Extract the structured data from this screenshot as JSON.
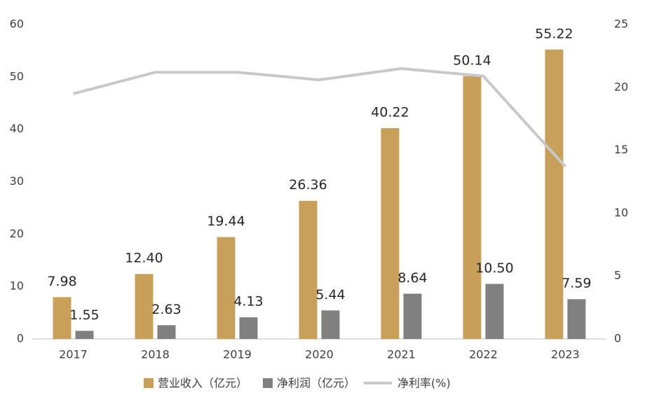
{
  "chart_data": {
    "type": "combo",
    "categories": [
      "2017",
      "2018",
      "2019",
      "2020",
      "2021",
      "2022",
      "2023"
    ],
    "series": [
      {
        "name": "营业收入（亿元）",
        "type": "bar",
        "color": "#C9A05A",
        "values": [
          7.98,
          12.4,
          19.44,
          26.36,
          40.22,
          50.14,
          55.22
        ],
        "value_labels": [
          "7.98",
          "12.40",
          "19.44",
          "26.36",
          "40.22",
          "50.14",
          "55.22"
        ]
      },
      {
        "name": "净利润（亿元）",
        "type": "bar",
        "color": "#808080",
        "values": [
          1.55,
          2.63,
          4.13,
          5.44,
          8.64,
          10.5,
          7.59
        ],
        "value_labels": [
          "1.55",
          "2.63",
          "4.13",
          "5.44",
          "8.64",
          "10.50",
          "7.59"
        ]
      },
      {
        "name": "净利率(%)",
        "type": "line",
        "axis": "y2",
        "color": "#C8C8C8",
        "values": [
          19.5,
          21.2,
          21.2,
          20.6,
          21.5,
          20.9,
          13.7
        ]
      }
    ],
    "ylim": [
      0,
      60
    ],
    "yticks": [
      0,
      10,
      20,
      30,
      40,
      50,
      60
    ],
    "y2lim": [
      0,
      25
    ],
    "y2ticks": [
      0,
      5,
      10,
      15,
      20,
      25
    ],
    "grid": false,
    "legend": "bottom"
  }
}
